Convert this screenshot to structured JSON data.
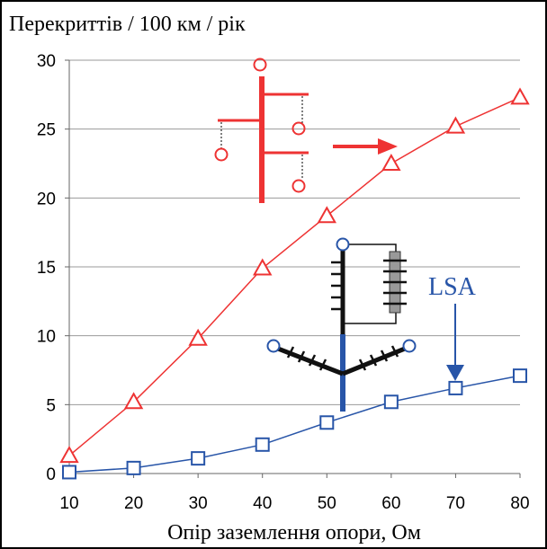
{
  "chart_data": {
    "type": "line",
    "title": "Перекриттів / 100 км / рік",
    "x_label": "Опір заземлення опори, Ом",
    "annotations": [
      "LSA"
    ],
    "x": [
      10,
      20,
      30,
      40,
      50,
      60,
      70,
      80
    ],
    "series": [
      {
        "color": "#ee3333",
        "marker": "triangle",
        "values": [
          1.3,
          5.2,
          9.8,
          14.9,
          18.7,
          22.5,
          25.2,
          27.3
        ]
      },
      {
        "color": "#2855a8",
        "marker": "square",
        "values": [
          0.1,
          0.4,
          1.1,
          2.1,
          3.7,
          5.2,
          6.2,
          7.1
        ]
      }
    ],
    "xlim": [
      10,
      80
    ],
    "xticks": [
      10,
      20,
      30,
      40,
      50,
      60,
      70,
      80
    ],
    "ylim": [
      0,
      30
    ],
    "yticks": [
      0,
      5,
      10,
      15,
      20,
      25,
      30
    ],
    "grid": true
  }
}
